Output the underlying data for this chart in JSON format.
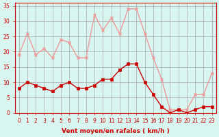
{
  "x": [
    0,
    1,
    2,
    3,
    4,
    5,
    6,
    7,
    8,
    9,
    10,
    11,
    12,
    13,
    14,
    15,
    16,
    17,
    18,
    19,
    20,
    21,
    22,
    23
  ],
  "avg_wind": [
    8,
    10,
    9,
    8,
    7,
    9,
    10,
    8,
    8,
    9,
    11,
    11,
    14,
    16,
    16,
    10,
    6,
    2,
    0,
    1,
    0,
    1,
    2,
    2
  ],
  "gust_wind": [
    19,
    26,
    19,
    21,
    18,
    24,
    23,
    18,
    18,
    32,
    27,
    31,
    26,
    34,
    34,
    26,
    18,
    11,
    1,
    1,
    1,
    6,
    6,
    13
  ],
  "bg_color": "#d8f5f0",
  "grid_color": "#aaaaaa",
  "avg_color": "#cc0000",
  "gust_color": "#ee9999",
  "xlabel": "Vent moyen/en rafales ( km/h )",
  "ylabel_ticks": [
    0,
    5,
    10,
    15,
    20,
    25,
    30,
    35
  ],
  "ylim": [
    0,
    36
  ],
  "xlim": [
    -0.5,
    23.5
  ]
}
